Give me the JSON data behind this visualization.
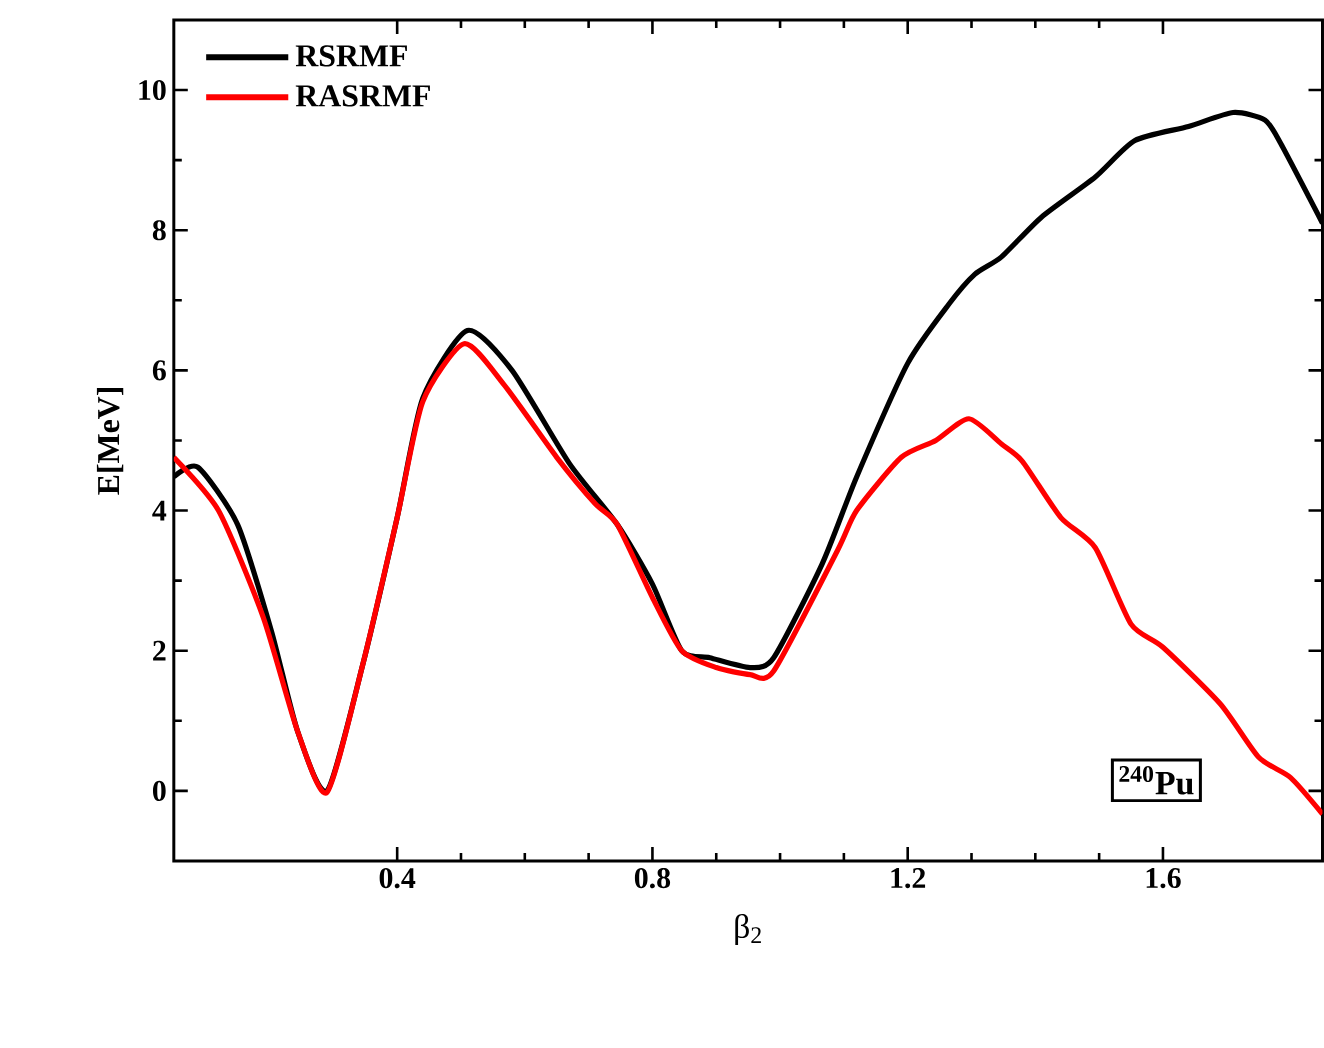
{
  "chart_data": {
    "type": "line",
    "xlabel": "β$_{2}$",
    "ylabel": "E[MeV]",
    "xlim": [
      0.05,
      1.85
    ],
    "ylim": [
      -1,
      11
    ],
    "xticks": [
      0.4,
      0.8,
      1.2,
      1.6
    ],
    "yticks": [
      0,
      2,
      4,
      6,
      8,
      10
    ],
    "legend": "top left",
    "grid": false,
    "marker": "none",
    "line_style": "solid",
    "annotations": [
      "$^{240}$Pu"
    ],
    "series": [
      {
        "name": "RSRMF",
        "color": "#000000",
        "x": [
          0.05,
          0.0875,
          0.15,
          0.203,
          0.244,
          0.29,
          0.346,
          0.4,
          0.44,
          0.51,
          0.58,
          0.67,
          0.745,
          0.8,
          0.846,
          0.89,
          0.953,
          0.99,
          1.066,
          1.12,
          1.2,
          1.265,
          1.305,
          1.347,
          1.41,
          1.494,
          1.556,
          1.64,
          1.71,
          1.76,
          1.785,
          1.85
        ],
        "values": [
          4.48,
          4.62,
          3.8,
          2.28,
          0.85,
          0,
          1.8,
          3.9,
          5.6,
          6.57,
          6.0,
          4.67,
          3.8,
          2.95,
          2.0,
          1.9,
          1.76,
          1.9,
          3.24,
          4.48,
          6.1,
          6.95,
          7.37,
          7.62,
          8.19,
          8.76,
          9.28,
          9.48,
          9.68,
          9.57,
          9.23,
          8.1
        ]
      },
      {
        "name": "RASRMF",
        "color": "#ff0000",
        "x": [
          0.05,
          0.12,
          0.19,
          0.244,
          0.29,
          0.346,
          0.4,
          0.44,
          0.505,
          0.567,
          0.65,
          0.71,
          0.745,
          0.8,
          0.846,
          0.9,
          0.953,
          0.99,
          1.09,
          1.12,
          1.19,
          1.244,
          1.296,
          1.347,
          1.38,
          1.44,
          1.494,
          1.55,
          1.6,
          1.69,
          1.75,
          1.8,
          1.85
        ],
        "values": [
          4.76,
          4.0,
          2.48,
          0.85,
          -0.02,
          1.8,
          3.9,
          5.55,
          6.38,
          5.8,
          4.76,
          4.1,
          3.8,
          2.76,
          2.0,
          1.76,
          1.66,
          1.71,
          3.43,
          4.0,
          4.76,
          5.0,
          5.31,
          4.95,
          4.7,
          3.9,
          3.47,
          2.38,
          2.05,
          1.24,
          0.48,
          0.19,
          -0.33
        ]
      }
    ]
  }
}
